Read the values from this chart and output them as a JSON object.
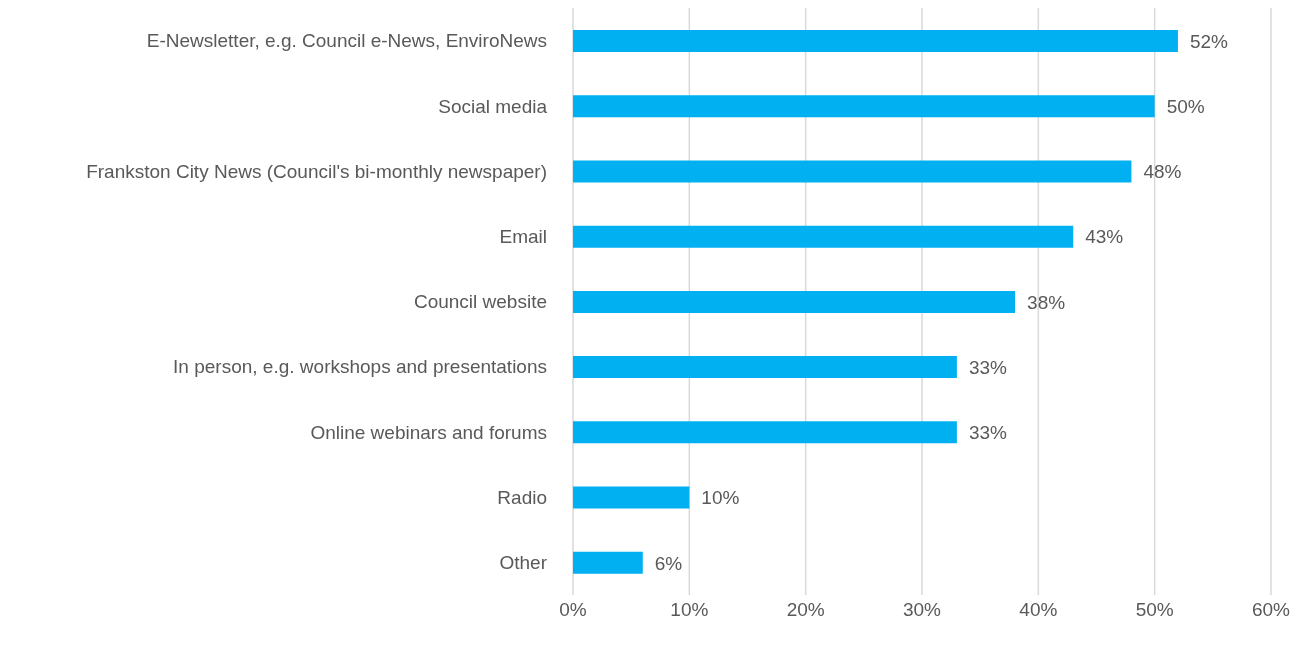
{
  "chart_data": {
    "type": "bar",
    "orientation": "horizontal",
    "categories": [
      "E-Newsletter, e.g. Council e-News, EnviroNews",
      "Social media",
      "Frankston City News (Council's bi-monthly newspaper)",
      "Email",
      "Council website",
      "In person, e.g. workshops and presentations",
      "Online webinars and forums",
      "Radio",
      "Other"
    ],
    "values": [
      52,
      50,
      48,
      43,
      38,
      33,
      33,
      10,
      6
    ],
    "value_labels": [
      "52%",
      "50%",
      "48%",
      "43%",
      "38%",
      "33%",
      "33%",
      "10%",
      "6%"
    ],
    "color": "#00b0f0",
    "xlim": [
      0,
      60
    ],
    "xticks": [
      {
        "value": 0,
        "label": "0%"
      },
      {
        "value": 10,
        "label": "10%"
      },
      {
        "value": 20,
        "label": "20%"
      },
      {
        "value": 30,
        "label": "30%"
      },
      {
        "value": 40,
        "label": "40%"
      },
      {
        "value": 50,
        "label": "50%"
      },
      {
        "value": 60,
        "label": "60%"
      }
    ],
    "grid": "x",
    "legend": false
  }
}
